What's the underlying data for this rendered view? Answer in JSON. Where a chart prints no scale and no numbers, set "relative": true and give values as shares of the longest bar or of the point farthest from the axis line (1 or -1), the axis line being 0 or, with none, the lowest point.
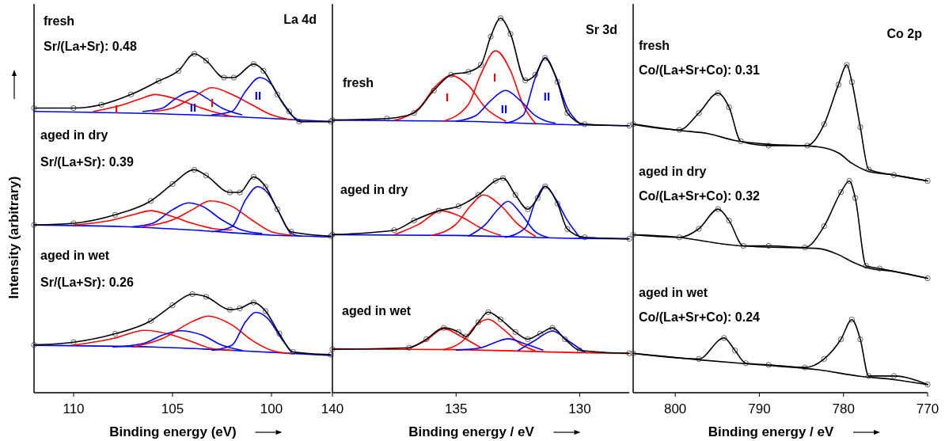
{
  "chart_data": [
    {
      "type": "line",
      "relative": true,
      "xlabel": "Binding energy (eV)",
      "ylabel": "Intensity (arbitrary)",
      "xlim": [
        112,
        97
      ],
      "xticks": [
        110,
        105,
        100
      ],
      "annotations": [
        "La 4d",
        "fresh",
        "Sr/(La+Sr): 0.48",
        "aged in dry",
        "Sr/(La+Sr): 0.39",
        "aged in wet",
        "Sr/(La+Sr): 0.26",
        "I",
        "II",
        "I",
        "II"
      ],
      "series": [
        {
          "color": "#0000ff",
          "x": [
            112,
            104,
            97
          ],
          "values": [
            0.83,
            0.82,
            0.8
          ]
        },
        {
          "color": "#ff0000",
          "x": [
            109,
            107.5,
            106.5,
            105.9,
            105,
            104,
            103,
            102
          ],
          "values": [
            0.83,
            0.85,
            0.87,
            0.88,
            0.87,
            0.85,
            0.83,
            0.815
          ]
        },
        {
          "color": "#0000ff",
          "x": [
            106.5,
            105.5,
            104.8,
            104,
            103.3,
            102.5,
            101.5
          ],
          "values": [
            0.83,
            0.84,
            0.87,
            0.89,
            0.87,
            0.84,
            0.82
          ]
        },
        {
          "color": "#ff0000",
          "x": [
            106,
            105,
            104,
            103,
            102,
            101,
            100,
            99
          ],
          "values": [
            0.83,
            0.84,
            0.87,
            0.9,
            0.88,
            0.85,
            0.82,
            0.805
          ]
        },
        {
          "color": "#0000ff",
          "x": [
            103,
            102,
            101.3,
            100.6,
            100,
            99.5,
            99,
            98.5
          ],
          "values": [
            0.82,
            0.83,
            0.89,
            0.93,
            0.91,
            0.86,
            0.82,
            0.8
          ]
        },
        {
          "color": "#000000",
          "marker": "circle",
          "x": [
            112,
            110,
            108.6,
            107.1,
            105.7,
            104.7,
            103.9,
            103.3,
            102.4,
            101.9,
            100.9,
            100.4,
            99.7,
            99.1,
            98.6,
            97
          ],
          "values": [
            0.84,
            0.84,
            0.85,
            0.88,
            0.92,
            0.95,
            1,
            0.98,
            0.93,
            0.93,
            0.97,
            0.95,
            0.88,
            0.83,
            0.8,
            0.8
          ]
        },
        {
          "color": "#0000ff",
          "x": [
            112,
            107.5,
            104,
            100,
            97
          ],
          "values": [
            0.495,
            0.49,
            0.48,
            0.465,
            0.46
          ]
        },
        {
          "color": "#ff0000",
          "x": [
            110,
            108,
            107,
            106.1,
            105,
            104,
            103,
            102
          ],
          "values": [
            0.495,
            0.51,
            0.525,
            0.537,
            0.52,
            0.5,
            0.485,
            0.48
          ]
        },
        {
          "color": "#0000ff",
          "x": [
            107,
            106,
            105,
            104.2,
            103.5,
            102.5,
            101.5,
            100.5
          ],
          "values": [
            0.49,
            0.5,
            0.54,
            0.56,
            0.55,
            0.51,
            0.48,
            0.47
          ]
        },
        {
          "color": "#ff0000",
          "x": [
            106.5,
            105,
            104,
            103.1,
            102,
            101,
            100,
            99
          ],
          "values": [
            0.49,
            0.51,
            0.54,
            0.566,
            0.55,
            0.51,
            0.475,
            0.465
          ]
        },
        {
          "color": "#0000ff",
          "x": [
            103,
            102,
            101.3,
            100.7,
            100.2,
            99.6,
            99,
            98.5
          ],
          "values": [
            0.475,
            0.49,
            0.57,
            0.608,
            0.59,
            0.53,
            0.47,
            0.462
          ]
        },
        {
          "color": "#000000",
          "marker": "circle",
          "x": [
            112,
            110,
            107.9,
            106.1,
            105,
            103.9,
            103.3,
            102.1,
            101.6,
            100.9,
            100.3,
            99.7,
            99,
            97
          ],
          "values": [
            0.495,
            0.5,
            0.525,
            0.566,
            0.616,
            0.658,
            0.641,
            0.591,
            0.591,
            0.637,
            0.608,
            0.541,
            0.475,
            0.462
          ]
        },
        {
          "color": "#0000ff",
          "x": [
            112,
            106,
            102,
            97
          ],
          "values": [
            0.14,
            0.135,
            0.125,
            0.11
          ]
        },
        {
          "color": "#ff0000",
          "x": [
            110,
            108,
            106.4,
            105,
            104,
            103,
            102
          ],
          "values": [
            0.14,
            0.16,
            0.184,
            0.17,
            0.15,
            0.13,
            0.125
          ]
        },
        {
          "color": "#0000ff",
          "x": [
            108,
            106.5,
            105.5,
            104.6,
            103.5,
            102.5,
            101.5
          ],
          "values": [
            0.135,
            0.145,
            0.17,
            0.183,
            0.17,
            0.14,
            0.125
          ]
        },
        {
          "color": "#ff0000",
          "x": [
            107,
            105.5,
            104,
            103.2,
            102,
            101,
            100,
            99
          ],
          "values": [
            0.135,
            0.16,
            0.21,
            0.226,
            0.2,
            0.155,
            0.125,
            0.115
          ]
        },
        {
          "color": "#0000ff",
          "x": [
            103,
            102,
            101.3,
            100.8,
            100.2,
            99.5,
            99
          ],
          "values": [
            0.125,
            0.14,
            0.21,
            0.237,
            0.22,
            0.16,
            0.12
          ]
        },
        {
          "color": "#000000",
          "marker": "circle",
          "x": [
            112,
            110,
            107.9,
            106.1,
            105,
            104,
            103.3,
            102.1,
            101.6,
            100.9,
            100.3,
            99.6,
            98.9,
            97
          ],
          "values": [
            0.141,
            0.149,
            0.174,
            0.212,
            0.258,
            0.291,
            0.283,
            0.245,
            0.249,
            0.266,
            0.241,
            0.174,
            0.12,
            0.112
          ]
        }
      ]
    },
    {
      "type": "line",
      "relative": true,
      "xlabel": "Binding energy / eV",
      "xlim": [
        140,
        128
      ],
      "xticks": [
        140,
        135,
        130
      ],
      "annotations": [
        "Sr 3d",
        "fresh",
        "aged in dry",
        "aged in wet",
        "I",
        "I",
        "II",
        "II"
      ],
      "series": [
        {
          "color": "#0000ff",
          "x": [
            140,
            135,
            130,
            128
          ],
          "values": [
            0.728,
            0.725,
            0.715,
            0.713
          ]
        },
        {
          "color": "#ff0000",
          "x": [
            137.5,
            136.5,
            135.8,
            135.2,
            134.5,
            133.8,
            133
          ],
          "values": [
            0.727,
            0.76,
            0.82,
            0.847,
            0.82,
            0.76,
            0.725
          ]
        },
        {
          "color": "#ff0000",
          "x": [
            135.5,
            134.5,
            134,
            133.4,
            132.8,
            132.3,
            131.8
          ],
          "values": [
            0.725,
            0.77,
            0.85,
            0.913,
            0.86,
            0.77,
            0.72
          ]
        },
        {
          "color": "#0000ff",
          "x": [
            135,
            134.2,
            133.6,
            133,
            132.4,
            131.8,
            131
          ],
          "values": [
            0.725,
            0.74,
            0.78,
            0.807,
            0.78,
            0.74,
            0.72
          ]
        },
        {
          "color": "#0000ff",
          "x": [
            133,
            132.3,
            131.8,
            131.4,
            131,
            130.5,
            130
          ],
          "values": [
            0.72,
            0.74,
            0.84,
            0.894,
            0.85,
            0.76,
            0.718
          ]
        },
        {
          "color": "#000000",
          "marker": "circle",
          "x": [
            140,
            137.8,
            136.7,
            135.9,
            135.2,
            134.5,
            134,
            133.6,
            133.2,
            132.8,
            132.2,
            131.8,
            131.4,
            130.9,
            130.5,
            129.8,
            128
          ],
          "values": [
            0.728,
            0.732,
            0.747,
            0.807,
            0.849,
            0.857,
            0.875,
            0.951,
            1,
            0.958,
            0.834,
            0.849,
            0.894,
            0.83,
            0.747,
            0.717,
            0.713
          ]
        },
        {
          "color": "#0000ff",
          "x": [
            140,
            135,
            130,
            128
          ],
          "values": [
            0.422,
            0.42,
            0.412,
            0.411
          ]
        },
        {
          "color": "#ff0000",
          "x": [
            137.5,
            136.5,
            135.6,
            134.8,
            134,
            133.2
          ],
          "values": [
            0.422,
            0.45,
            0.486,
            0.47,
            0.44,
            0.42
          ]
        },
        {
          "color": "#ff0000",
          "x": [
            136,
            135,
            134.4,
            133.9,
            133.2,
            132.5,
            131.8
          ],
          "values": [
            0.42,
            0.45,
            0.5,
            0.528,
            0.5,
            0.45,
            0.418
          ]
        },
        {
          "color": "#0000ff",
          "x": [
            134.5,
            133.8,
            133.3,
            132.9,
            132.4,
            131.8,
            131.3
          ],
          "values": [
            0.418,
            0.45,
            0.49,
            0.511,
            0.48,
            0.43,
            0.415
          ]
        },
        {
          "color": "#0000ff",
          "x": [
            133,
            132.2,
            131.8,
            131.4,
            131,
            130.5,
            130
          ],
          "values": [
            0.415,
            0.44,
            0.51,
            0.551,
            0.52,
            0.46,
            0.415
          ]
        },
        {
          "color": "#000000",
          "marker": "circle",
          "x": [
            140,
            137.5,
            136.7,
            135.7,
            134.9,
            134.1,
            133.4,
            133.1,
            132.6,
            132.1,
            131.7,
            131.4,
            130.9,
            130.5,
            129.8,
            128
          ],
          "values": [
            0.422,
            0.434,
            0.46,
            0.486,
            0.498,
            0.528,
            0.566,
            0.573,
            0.528,
            0.49,
            0.52,
            0.551,
            0.505,
            0.437,
            0.415,
            0.411
          ]
        },
        {
          "color": "#ff0000",
          "x": [
            140,
            135,
            130,
            128
          ],
          "values": [
            0.117,
            0.115,
            0.107,
            0.105
          ]
        },
        {
          "color": "#ff0000",
          "x": [
            137,
            136.2,
            135.5,
            134.8,
            134
          ],
          "values": [
            0.117,
            0.14,
            0.171,
            0.15,
            0.12
          ]
        },
        {
          "color": "#ff0000",
          "x": [
            135.5,
            134.7,
            134.2,
            133.7,
            133.1,
            132.4,
            131.8
          ],
          "values": [
            0.115,
            0.14,
            0.18,
            0.196,
            0.17,
            0.13,
            0.112
          ]
        },
        {
          "color": "#0000ff",
          "x": [
            135,
            134,
            133.4,
            132.9,
            132.2,
            131.5
          ],
          "values": [
            0.114,
            0.12,
            0.135,
            0.144,
            0.13,
            0.114
          ]
        },
        {
          "color": "#0000ff",
          "x": [
            132.5,
            131.8,
            131.1,
            130.5,
            129.8
          ],
          "values": [
            0.112,
            0.14,
            0.165,
            0.14,
            0.108
          ]
        },
        {
          "color": "#000000",
          "marker": "circle",
          "x": [
            140,
            136.9,
            136.2,
            135.5,
            134.9,
            134.6,
            134.1,
            133.7,
            133.2,
            132.6,
            132.1,
            131.6,
            131.1,
            130.6,
            130,
            128
          ],
          "values": [
            0.116,
            0.12,
            0.143,
            0.173,
            0.162,
            0.15,
            0.188,
            0.215,
            0.196,
            0.162,
            0.143,
            0.158,
            0.173,
            0.143,
            0.113,
            0.105
          ]
        }
      ]
    },
    {
      "type": "line",
      "relative": true,
      "xlabel": "Binding energy / eV",
      "xlim": [
        805,
        770
      ],
      "xticks": [
        800,
        790,
        780,
        770
      ],
      "annotations": [
        "Co 2p",
        "fresh",
        "Co/(La+Sr+Co): 0.31",
        "aged in dry",
        "Co/(La+Sr+Co): 0.32",
        "aged in wet",
        "Co/(La+Sr+Co): 0.24"
      ],
      "series": [
        {
          "color": "#000000",
          "x": [
            805,
            799.5,
            796,
            793,
            790,
            783,
            780.5,
            779,
            777,
            774,
            770
          ],
          "values": [
            0.82,
            0.8,
            0.79,
            0.77,
            0.76,
            0.75,
            0.73,
            0.7,
            0.675,
            0.664,
            0.646
          ]
        },
        {
          "color": "#000000",
          "marker": "circle",
          "x": [
            805,
            799.5,
            797.2,
            794.9,
            793.6,
            792.2,
            788.9,
            784.3,
            782.3,
            780.6,
            779.6,
            779,
            778,
            777,
            774,
            770
          ],
          "values": [
            0.819,
            0.802,
            0.853,
            0.914,
            0.871,
            0.767,
            0.754,
            0.754,
            0.819,
            0.94,
            1,
            0.948,
            0.81,
            0.681,
            0.664,
            0.646
          ]
        },
        {
          "color": "#000000",
          "x": [
            805,
            799.5,
            796,
            793,
            790,
            783,
            780.5,
            779,
            777,
            774,
            770
          ],
          "values": [
            0.482,
            0.474,
            0.46,
            0.45,
            0.445,
            0.44,
            0.42,
            0.4,
            0.38,
            0.37,
            0.349
          ]
        },
        {
          "color": "#000000",
          "marker": "circle",
          "x": [
            805,
            799.5,
            797.2,
            794.9,
            793.6,
            791.9,
            788.9,
            784.6,
            782.3,
            780.3,
            779.3,
            778.6,
            777.3,
            775.7,
            770
          ],
          "values": [
            0.482,
            0.474,
            0.5,
            0.56,
            0.525,
            0.448,
            0.448,
            0.443,
            0.508,
            0.612,
            0.646,
            0.594,
            0.387,
            0.379,
            0.349
          ]
        },
        {
          "color": "#000000",
          "x": [
            805,
            797,
            790,
            783,
            778,
            774,
            770
          ],
          "values": [
            0.12,
            0.1,
            0.085,
            0.07,
            0.05,
            0.04,
            0.025
          ]
        },
        {
          "color": "#000000",
          "marker": "circle",
          "x": [
            805,
            797.2,
            794.2,
            792.9,
            791.6,
            788.9,
            784.6,
            782.3,
            780.3,
            779,
            778,
            777,
            774,
            770
          ],
          "values": [
            0.12,
            0.103,
            0.167,
            0.129,
            0.09,
            0.085,
            0.077,
            0.103,
            0.163,
            0.223,
            0.163,
            0.051,
            0.051,
            0.025
          ]
        }
      ]
    }
  ]
}
